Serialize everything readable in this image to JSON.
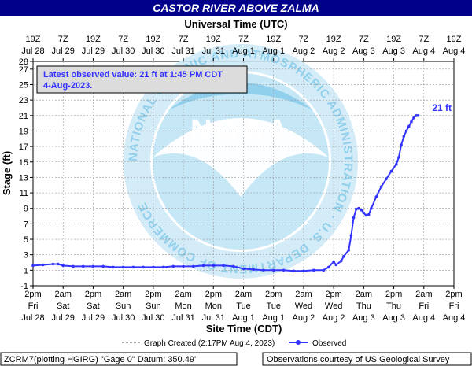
{
  "title": "CASTOR RIVER ABOVE ZALMA",
  "top_axis_label": "Universal Time (UTC)",
  "bottom_axis_label": "Site Time (CDT)",
  "y_axis_label": "Stage (ft)",
  "watermark_text": "NATIONAL OCEANIC AND ATMOSPHERIC ADMINISTRATION · U.S. DEPARTMENT OF COMMERCE",
  "watermark_logo_text": "NOAA",
  "annotation": {
    "line1": "Latest observed value: 21 ft at 1:45 PM CDT",
    "line2": "4-Aug-2023."
  },
  "last_value_label": "21 ft",
  "legend": {
    "graph_created": "Graph Created (2:17PM Aug 4, 2023)",
    "observed": "Observed"
  },
  "footer": {
    "left": "ZCRM7(plotting HGIRG) \"Gage 0\" Datum:  350.49'",
    "right": "Observations courtesy of US Geological Survey"
  },
  "colors": {
    "title_bg": "#00008b",
    "title_text": "#ffffff",
    "series": "#3333ff",
    "watermark": "#7ec8ea",
    "grid": "#999999"
  },
  "chart_data": {
    "type": "line",
    "x_unit": "hours since Jul 28 2pm CDT",
    "xlim": [
      0,
      168
    ],
    "ylim": [
      -1,
      28
    ],
    "grid": true,
    "y_ticks": [
      -1,
      1,
      3,
      5,
      7,
      9,
      11,
      13,
      15,
      17,
      19,
      21,
      23,
      25,
      27,
      28
    ],
    "top_ticks": [
      [
        "19Z",
        "Jul 28"
      ],
      [
        "7Z",
        "Jul 29"
      ],
      [
        "19Z",
        "Jul 29"
      ],
      [
        "7Z",
        "Jul 30"
      ],
      [
        "19Z",
        "Jul 30"
      ],
      [
        "7Z",
        "Jul 31"
      ],
      [
        "19Z",
        "Jul 31"
      ],
      [
        "7Z",
        "Aug 1"
      ],
      [
        "19Z",
        "Aug 1"
      ],
      [
        "7Z",
        "Aug 2"
      ],
      [
        "19Z",
        "Aug 2"
      ],
      [
        "7Z",
        "Aug 3"
      ],
      [
        "19Z",
        "Aug 3"
      ],
      [
        "7Z",
        "Aug 4"
      ],
      [
        "19Z",
        "Aug 4"
      ]
    ],
    "bottom_ticks": [
      [
        "2pm",
        "Fri",
        "Jul 28"
      ],
      [
        "2am",
        "Sat",
        "Jul 29"
      ],
      [
        "2pm",
        "Sat",
        "Jul 29"
      ],
      [
        "2am",
        "Sun",
        "Jul 30"
      ],
      [
        "2pm",
        "Sun",
        "Jul 30"
      ],
      [
        "2am",
        "Mon",
        "Jul 31"
      ],
      [
        "2pm",
        "Mon",
        "Jul 31"
      ],
      [
        "2am",
        "Tue",
        "Aug 1"
      ],
      [
        "2pm",
        "Tue",
        "Aug 1"
      ],
      [
        "2am",
        "Wed",
        "Aug 2"
      ],
      [
        "2pm",
        "Wed",
        "Aug 2"
      ],
      [
        "2am",
        "Thu",
        "Aug 3"
      ],
      [
        "2pm",
        "Thu",
        "Aug 3"
      ],
      [
        "2am",
        "Fri",
        "Aug 4"
      ],
      [
        "2pm",
        "Fri",
        "Aug 4"
      ]
    ],
    "series": [
      {
        "name": "Observed",
        "points": [
          [
            0,
            1.6
          ],
          [
            4,
            1.7
          ],
          [
            8,
            1.8
          ],
          [
            10,
            1.8
          ],
          [
            12,
            1.6
          ],
          [
            16,
            1.5
          ],
          [
            20,
            1.5
          ],
          [
            24,
            1.5
          ],
          [
            28,
            1.5
          ],
          [
            32,
            1.4
          ],
          [
            36,
            1.4
          ],
          [
            40,
            1.4
          ],
          [
            44,
            1.4
          ],
          [
            48,
            1.4
          ],
          [
            52,
            1.4
          ],
          [
            56,
            1.5
          ],
          [
            60,
            1.5
          ],
          [
            64,
            1.5
          ],
          [
            68,
            1.6
          ],
          [
            72,
            1.6
          ],
          [
            76,
            1.6
          ],
          [
            80,
            1.5
          ],
          [
            84,
            1.2
          ],
          [
            88,
            1.1
          ],
          [
            92,
            1.0
          ],
          [
            96,
            1.0
          ],
          [
            100,
            1.0
          ],
          [
            104,
            0.9
          ],
          [
            108,
            0.9
          ],
          [
            112,
            1.0
          ],
          [
            116,
            1.0
          ],
          [
            118,
            1.4
          ],
          [
            120,
            2.1
          ],
          [
            121,
            1.7
          ],
          [
            123,
            2.2
          ],
          [
            124,
            2.8
          ],
          [
            126,
            3.6
          ],
          [
            127,
            5.5
          ],
          [
            128,
            7.8
          ],
          [
            129,
            8.9
          ],
          [
            130,
            9.0
          ],
          [
            131,
            8.8
          ],
          [
            132,
            8.4
          ],
          [
            133,
            8.1
          ],
          [
            134,
            8.2
          ],
          [
            135,
            9.0
          ],
          [
            137,
            10.5
          ],
          [
            139,
            11.8
          ],
          [
            141,
            12.8
          ],
          [
            143,
            13.8
          ],
          [
            145,
            14.7
          ],
          [
            146,
            15.6
          ],
          [
            147,
            17.2
          ],
          [
            148,
            18.3
          ],
          [
            149,
            19.0
          ],
          [
            150,
            19.6
          ],
          [
            151,
            20.2
          ],
          [
            152,
            20.7
          ],
          [
            153,
            21.0
          ],
          [
            153.75,
            21.0
          ]
        ]
      }
    ]
  }
}
